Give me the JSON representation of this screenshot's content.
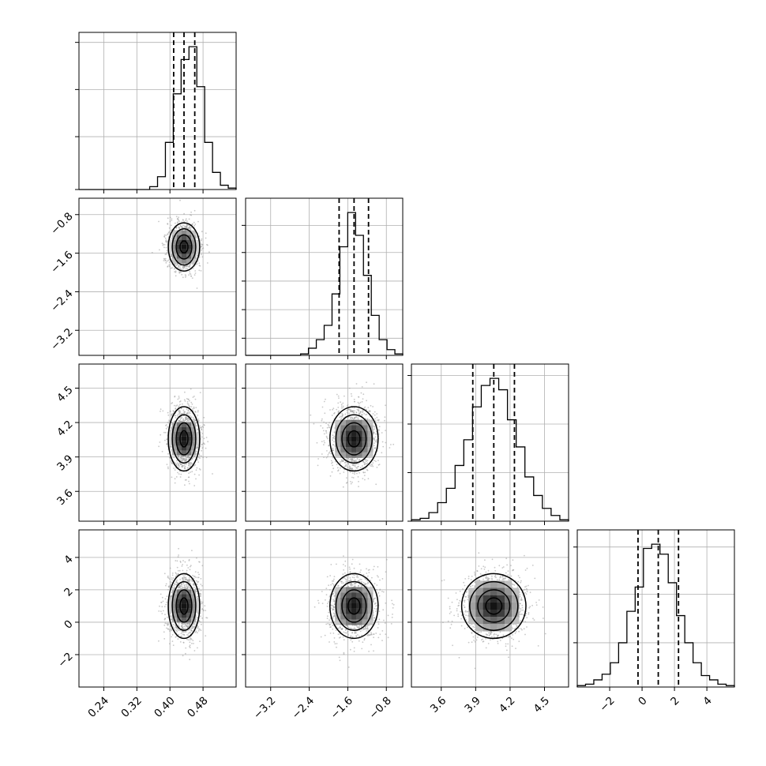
{
  "chart_data": {
    "type": "corner",
    "title": "",
    "parameters": [
      {
        "range": [
          0.18,
          0.56
        ],
        "ticks": [
          0.24,
          0.32,
          0.4,
          0.48
        ],
        "tick_labels": [
          "0.24",
          "0.32",
          "0.40",
          "0.48"
        ],
        "quantiles": [
          0.409,
          0.434,
          0.46
        ],
        "hist": [
          0,
          0,
          0,
          0,
          0,
          0,
          0,
          0,
          0,
          0.02,
          0.09,
          0.33,
          0.67,
          0.91,
          1.0,
          0.72,
          0.33,
          0.12,
          0.03,
          0.01
        ],
        "hist_ticks": [
          0,
          0.37,
          0.7,
          1.03
        ]
      },
      {
        "range": [
          -3.72,
          -0.46
        ],
        "ticks": [
          -3.2,
          -2.4,
          -1.6,
          -0.8
        ],
        "tick_labels": [
          "−3.2",
          "−2.4",
          "−1.6",
          "−0.8"
        ],
        "quantiles": [
          -1.78,
          -1.47,
          -1.17
        ],
        "hist": [
          0,
          0,
          0,
          0,
          0,
          0,
          0,
          0.01,
          0.05,
          0.11,
          0.21,
          0.43,
          0.76,
          1.0,
          0.84,
          0.56,
          0.28,
          0.11,
          0.04,
          0.01
        ],
        "hist_ticks": [
          0.12,
          0.32,
          0.52,
          0.72,
          0.91
        ]
      },
      {
        "range": [
          3.34,
          4.71
        ],
        "ticks": [
          3.6,
          3.9,
          4.2,
          4.5
        ],
        "tick_labels": [
          "3.6",
          "3.9",
          "4.2",
          "4.5"
        ],
        "quantiles": [
          3.875,
          4.058,
          4.238
        ],
        "hist": [
          0.01,
          0.02,
          0.06,
          0.13,
          0.23,
          0.39,
          0.57,
          0.8,
          0.95,
          1.0,
          0.92,
          0.71,
          0.52,
          0.31,
          0.18,
          0.09,
          0.04,
          0.01
        ],
        "hist_ticks": [
          0,
          0.34,
          0.68,
          1.02
        ]
      },
      {
        "range": [
          -4.0,
          5.7
        ],
        "ticks": [
          -2,
          0,
          2,
          4
        ],
        "tick_labels": [
          "−2",
          "0",
          "2",
          "4"
        ],
        "quantiles": [
          -0.25,
          1.0,
          2.25
        ],
        "hist": [
          0.01,
          0.02,
          0.05,
          0.09,
          0.17,
          0.31,
          0.53,
          0.7,
          0.97,
          1.0,
          0.93,
          0.73,
          0.5,
          0.31,
          0.17,
          0.08,
          0.05,
          0.02,
          0.01
        ],
        "hist_ticks": [
          0.31,
          0.65,
          0.98
        ]
      }
    ],
    "pairs": [
      {
        "x": 0,
        "y": 1,
        "center": [
          0.434,
          -1.47
        ],
        "sigma": [
          0.019,
          0.25
        ]
      },
      {
        "x": 0,
        "y": 2,
        "center": [
          0.434,
          4.058
        ],
        "sigma": [
          0.019,
          0.14
        ]
      },
      {
        "x": 1,
        "y": 2,
        "center": [
          -1.47,
          4.058
        ],
        "sigma": [
          0.25,
          0.14
        ]
      },
      {
        "x": 0,
        "y": 3,
        "center": [
          0.434,
          1.0
        ],
        "sigma": [
          0.019,
          1.0
        ]
      },
      {
        "x": 1,
        "y": 3,
        "center": [
          -1.47,
          1.0
        ],
        "sigma": [
          0.25,
          1.0
        ]
      },
      {
        "x": 2,
        "y": 3,
        "center": [
          4.058,
          1.0
        ],
        "sigma": [
          0.14,
          1.0
        ]
      }
    ],
    "contour_levels_sigma": [
      0.5,
      1.0,
      1.5,
      2.0
    ],
    "grid": true,
    "quantile_line_style": "dashed",
    "colors": {
      "line": "#000000",
      "grid": "#b0b0b0",
      "points": "#9a9a9a"
    }
  }
}
